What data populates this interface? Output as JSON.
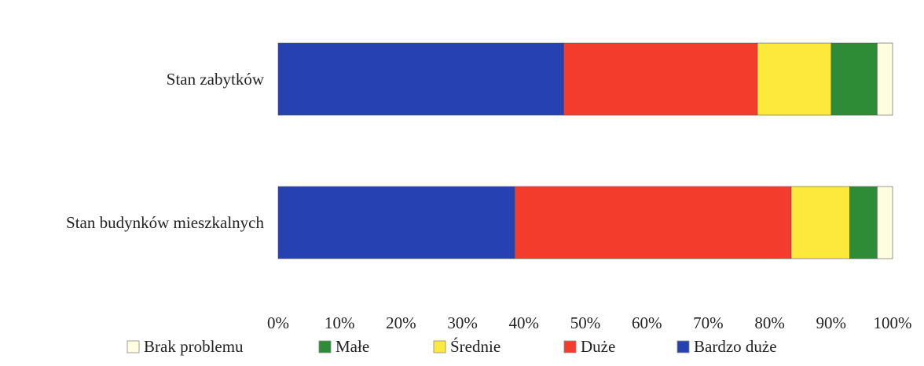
{
  "chart_data": {
    "type": "bar",
    "orientation": "horizontal",
    "stacked": "percent",
    "categories": [
      "Stan zabytków",
      "Stan budynków mieszkalnych"
    ],
    "series": [
      {
        "name": "Bardzo duże",
        "color": "#2541b2",
        "values": [
          46.5,
          38.5
        ]
      },
      {
        "name": "Duże",
        "color": "#f43c2c",
        "values": [
          31.5,
          45.0
        ]
      },
      {
        "name": "Średnie",
        "color": "#fde93c",
        "values": [
          12.0,
          9.5
        ]
      },
      {
        "name": "Małe",
        "color": "#2e8b36",
        "values": [
          7.5,
          4.5
        ]
      },
      {
        "name": "Brak problemu",
        "color": "#fffde0",
        "values": [
          2.5,
          2.5
        ]
      }
    ],
    "xlim": [
      0,
      100
    ],
    "xticks": [
      "0%",
      "10%",
      "20%",
      "30%",
      "40%",
      "50%",
      "60%",
      "70%",
      "80%",
      "90%",
      "100%"
    ],
    "legend": {
      "placement": "bottom",
      "order": [
        "Brak problemu",
        "Małe",
        "Średnie",
        "Duże",
        "Bardzo duże"
      ]
    },
    "grid": false
  }
}
